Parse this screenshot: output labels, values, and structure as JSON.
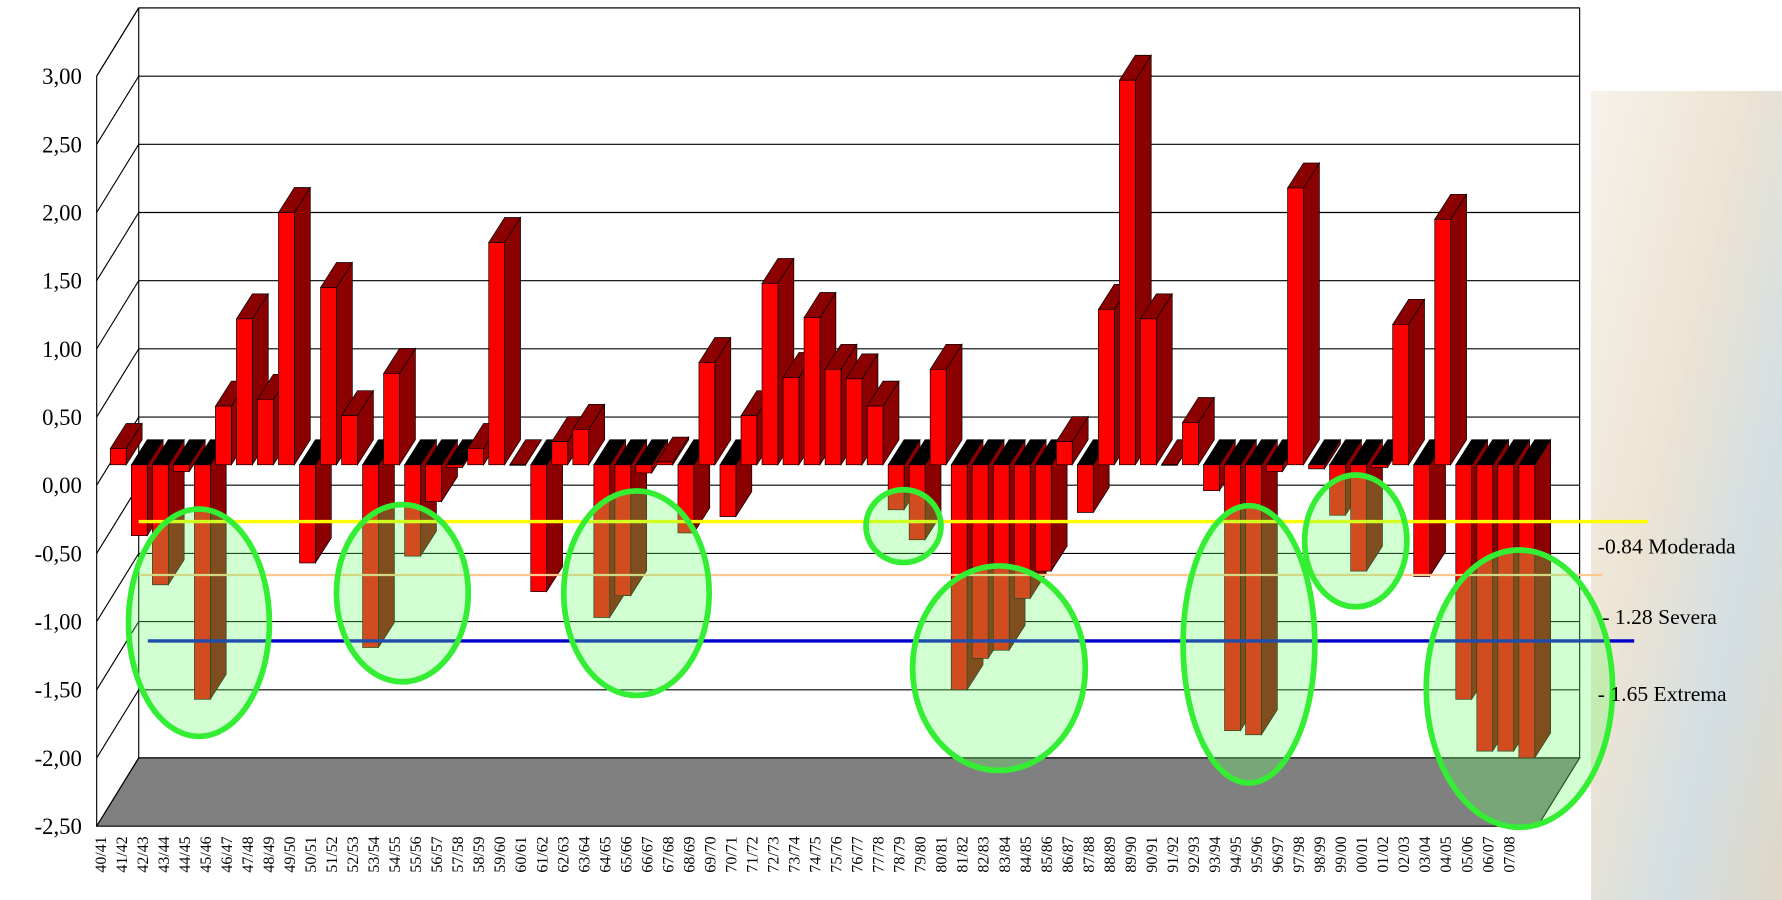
{
  "chart_data": {
    "type": "bar3d",
    "categories": [
      "40/41",
      "41/42",
      "42/43",
      "43/44",
      "44/45",
      "45/46",
      "46/47",
      "47/48",
      "48/49",
      "49/50",
      "50/51",
      "51/52",
      "52/53",
      "53/54",
      "54/55",
      "55/56",
      "56/57",
      "57/58",
      "58/59",
      "59/60",
      "60/61",
      "61/62",
      "62/63",
      "63/64",
      "64/65",
      "65/66",
      "66/67",
      "67/68",
      "68/69",
      "69/70",
      "70/71",
      "71/72",
      "72/73",
      "73/74",
      "74/75",
      "75/76",
      "76/77",
      "77/78",
      "78/79",
      "79/80",
      "80/81",
      "81/82",
      "82/83",
      "83/84",
      "84/85",
      "85/86",
      "86/87",
      "87/88",
      "88/89",
      "89/90",
      "90/91",
      "91/92",
      "92/93",
      "93/94",
      "94/95",
      "95/96",
      "96/97",
      "97/98",
      "98/99",
      "99/00",
      "00/01",
      "01/02",
      "02/03",
      "03/04",
      "04/05",
      "05/06",
      "06/07",
      "07/08"
    ],
    "values": [
      0.12,
      -0.52,
      -0.88,
      -0.05,
      -1.72,
      0.43,
      1.07,
      0.48,
      1.85,
      -0.72,
      1.3,
      0.36,
      -1.34,
      0.67,
      -0.67,
      -0.27,
      -0.02,
      0.12,
      1.63,
      0,
      -0.93,
      0.17,
      0.26,
      -1.12,
      -0.96,
      -0.06,
      0.02,
      -0.5,
      0.75,
      -0.38,
      0.36,
      1.33,
      0.64,
      1.08,
      0.7,
      0.63,
      0.43,
      -0.33,
      -0.55,
      0.7,
      -1.65,
      -1.42,
      -1.36,
      -0.98,
      -0.78,
      0.17,
      -0.35,
      1.14,
      2.82,
      1.07,
      0,
      0.31,
      -0.19,
      -1.95,
      -1.98,
      -0.05,
      2.03,
      -0.03,
      -0.37,
      -0.78,
      -0.02,
      1.03,
      -0.82,
      1.8,
      -1.72,
      -2.1,
      -2.1,
      -2.15
    ],
    "color": "#ff0000",
    "ylim": [
      -2.5,
      3
    ],
    "yticks": [
      {
        "value": -2.5,
        "label": "-2,50"
      },
      {
        "value": -2,
        "label": "-2,00"
      },
      {
        "value": -1.5,
        "label": "-1,50"
      },
      {
        "value": -1,
        "label": "-1,00"
      },
      {
        "value": -0.5,
        "label": "-0,50"
      },
      {
        "value": 0,
        "label": "0,00"
      },
      {
        "value": 0.5,
        "label": "0,50"
      },
      {
        "value": 1,
        "label": "1,00"
      },
      {
        "value": 1.5,
        "label": "1,50"
      },
      {
        "value": 2,
        "label": "2,00"
      },
      {
        "value": 2.5,
        "label": "2,50"
      },
      {
        "value": 3,
        "label": "3,00"
      }
    ],
    "grid": true,
    "annotations": [
      "-0.84 Moderada",
      "- 1.28 Severa",
      "- 1.65 Extrema"
    ]
  }
}
